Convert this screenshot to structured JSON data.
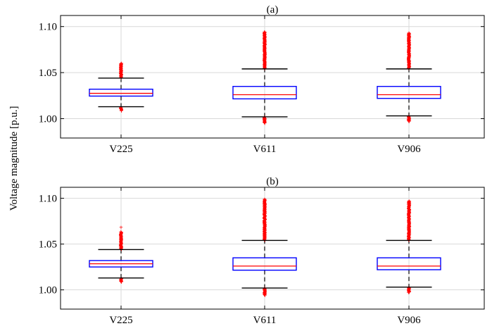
{
  "ylabel": "Voltage magnitude [p.u.]",
  "colors": {
    "box": "#0000ff",
    "median": "#ff0000",
    "outlier": "#ff0000",
    "whisker": "#000000",
    "grid": "#d9d9d9"
  },
  "chart_data": [
    {
      "type": "box",
      "title": "(a)",
      "categories": [
        "V225",
        "V611",
        "V906"
      ],
      "yticks": [
        "1.00",
        "1.05",
        "1.10"
      ],
      "ylim": [
        0.979,
        1.112
      ],
      "grid": true,
      "boxes": [
        {
          "name": "V225",
          "whisker_low": 1.013,
          "q1": 1.0245,
          "median": 1.0275,
          "q3": 1.032,
          "whisker_high": 1.044,
          "outliers_low": [
            1.0085,
            1.012
          ],
          "outliers_high": [
            1.0445,
            1.06
          ]
        },
        {
          "name": "V611",
          "whisker_low": 1.002,
          "q1": 1.0215,
          "median": 1.026,
          "q3": 1.035,
          "whisker_high": 1.054,
          "outliers_low": [
            0.995,
            1.0015
          ],
          "outliers_high": [
            1.0545,
            1.094
          ]
        },
        {
          "name": "V906",
          "whisker_low": 1.003,
          "q1": 1.022,
          "median": 1.026,
          "q3": 1.035,
          "whisker_high": 1.054,
          "outliers_low": [
            0.997,
            1.0025
          ],
          "outliers_high": [
            1.0545,
            1.093
          ]
        }
      ]
    },
    {
      "type": "box",
      "title": "(b)",
      "categories": [
        "V225",
        "V611",
        "V906"
      ],
      "yticks": [
        "1.00",
        "1.05",
        "1.10"
      ],
      "ylim": [
        0.979,
        1.112
      ],
      "grid": true,
      "boxes": [
        {
          "name": "V225",
          "whisker_low": 1.013,
          "q1": 1.025,
          "median": 1.0285,
          "q3": 1.032,
          "whisker_high": 1.044,
          "outliers_low": [
            1.0085,
            1.012
          ],
          "outliers_high": [
            1.0445,
            1.063
          ],
          "outliers_extra": [
            1.068
          ]
        },
        {
          "name": "V611",
          "whisker_low": 1.002,
          "q1": 1.0215,
          "median": 1.026,
          "q3": 1.035,
          "whisker_high": 1.054,
          "outliers_low": [
            0.994,
            1.0015
          ],
          "outliers_high": [
            1.0545,
            1.099
          ]
        },
        {
          "name": "V906",
          "whisker_low": 1.003,
          "q1": 1.022,
          "median": 1.026,
          "q3": 1.035,
          "whisker_high": 1.054,
          "outliers_low": [
            0.997,
            1.0025
          ],
          "outliers_high": [
            1.0545,
            1.097
          ]
        }
      ]
    }
  ]
}
